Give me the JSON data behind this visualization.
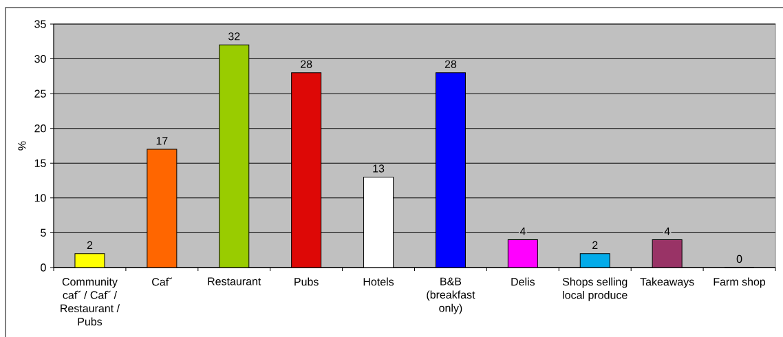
{
  "chart_data": {
    "type": "bar",
    "ylabel": "%",
    "categories": [
      "Community caf˘ / Caf˘ / Restaurant / Pubs",
      "Caf˘",
      "Restaurant",
      "Pubs",
      "Hotels",
      "B&B (breakfast only)",
      "Delis",
      "Shops selling local produce",
      "Takeaways",
      "Farm shop"
    ],
    "values": [
      2,
      17,
      32,
      28,
      13,
      28,
      4,
      2,
      4,
      0
    ],
    "colors": [
      "#FFFF00",
      "#FF6600",
      "#99CC00",
      "#DD0806",
      "#FFFFFF",
      "#0000FF",
      "#FF00FF",
      "#02ABEA",
      "#993366",
      "#808080"
    ],
    "ylim": [
      0,
      35
    ],
    "yticks": [
      0,
      5,
      10,
      15,
      20,
      25,
      30,
      35
    ],
    "grid": "y",
    "data_labels": true
  }
}
